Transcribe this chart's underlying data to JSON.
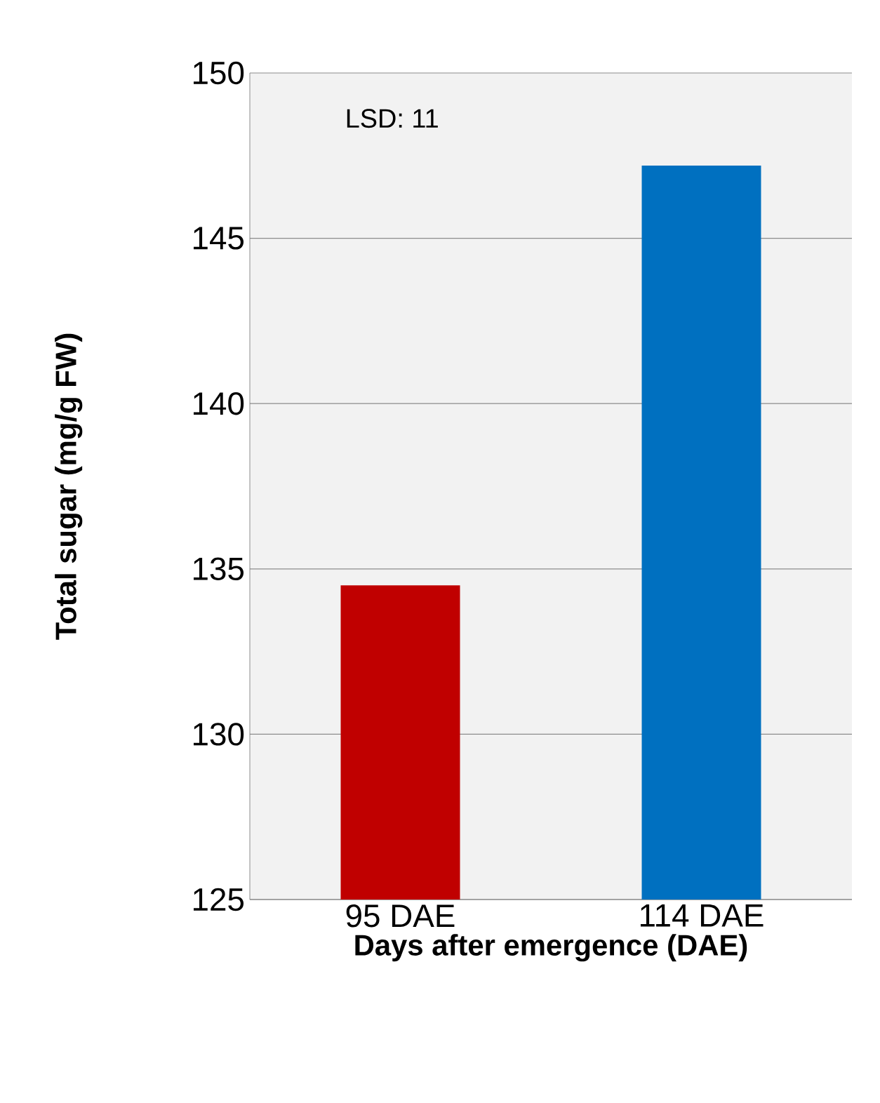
{
  "chart_data": {
    "type": "bar",
    "categories": [
      "95 DAE",
      "114 DAE"
    ],
    "values": [
      134.5,
      147.2
    ],
    "colors": [
      "#c00000",
      "#0070c0"
    ],
    "ylim": [
      125,
      150
    ],
    "yticks": [
      125,
      130,
      135,
      140,
      145,
      150
    ],
    "grid": "y",
    "xlabel": "Days after emergence (DAE)",
    "ylabel": "Total sugar (mg/g FW)",
    "annotations": [
      "LSD: 11"
    ]
  }
}
